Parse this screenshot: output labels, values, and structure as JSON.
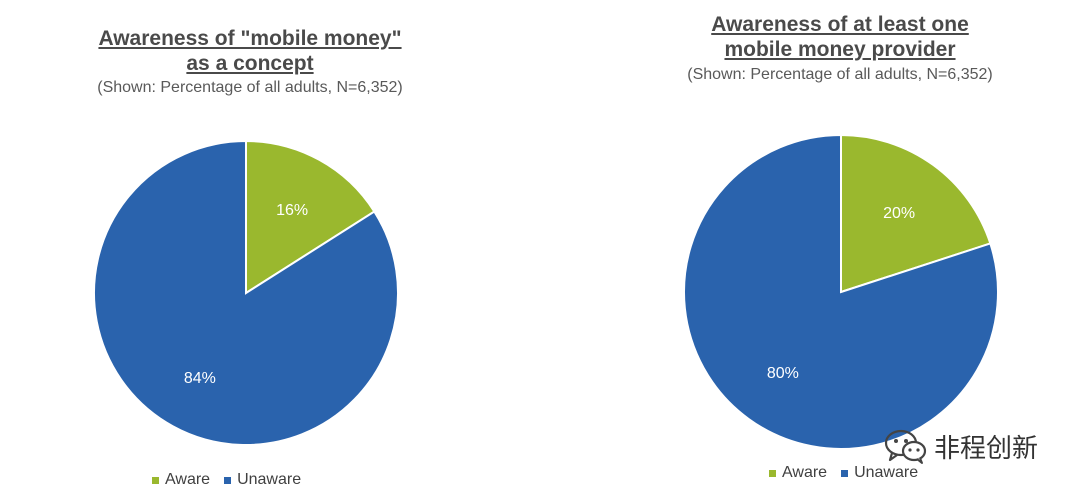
{
  "colors": {
    "aware": "#9ab82e",
    "unaware": "#2a63ad"
  },
  "chart_data": [
    {
      "type": "pie",
      "title_lines": [
        "Awareness of \"mobile money\"",
        "as a concept"
      ],
      "subtitle": "(Shown: Percentage of all adults, N=6,352)",
      "categories": [
        "Aware",
        "Unaware"
      ],
      "values": [
        16,
        84
      ],
      "data_labels": [
        "16%",
        "84%"
      ],
      "legend": [
        "Aware",
        "Unaware"
      ],
      "legend_position": "bottom"
    },
    {
      "type": "pie",
      "title_lines": [
        "Awareness of at least one",
        "mobile money provider"
      ],
      "subtitle": "(Shown: Percentage of all adults, N=6,352)",
      "categories": [
        "Aware",
        "Unaware"
      ],
      "values": [
        20,
        80
      ],
      "data_labels": [
        "20%",
        "80%"
      ],
      "legend": [
        "Aware",
        "Unaware"
      ],
      "legend_position": "bottom"
    }
  ],
  "watermark": {
    "text": "非程创新",
    "icon": "wechat-icon"
  }
}
